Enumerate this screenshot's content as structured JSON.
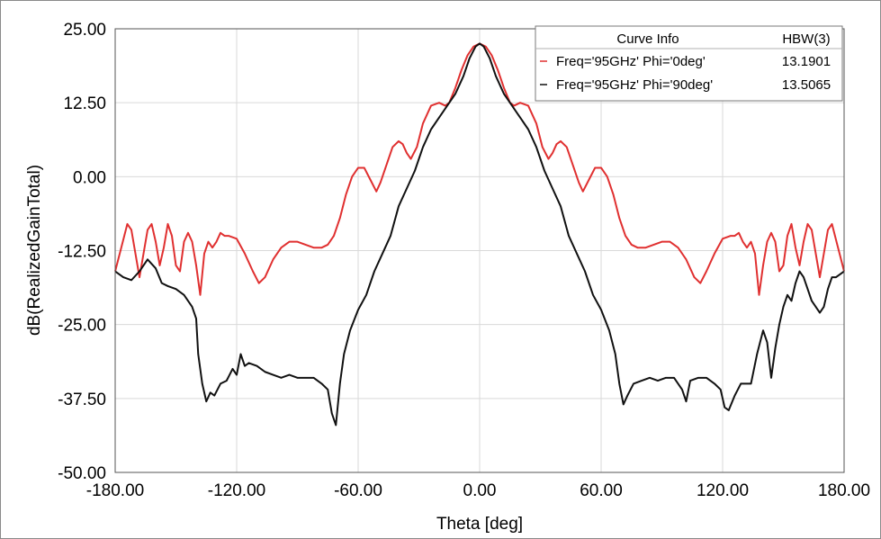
{
  "chart_data": {
    "type": "line",
    "title": "",
    "xlabel": "Theta [deg]",
    "ylabel": "dB(RealizedGainTotal)",
    "xlim": [
      -180,
      180
    ],
    "ylim": [
      -50,
      25
    ],
    "x_ticks": [
      -180,
      -120,
      -60,
      0,
      60,
      120,
      180
    ],
    "x_tick_labels": [
      "-180.00",
      "-120.00",
      "-60.00",
      "0.00",
      "60.00",
      "120.00",
      "180.00"
    ],
    "y_ticks": [
      25,
      12.5,
      0,
      -12.5,
      -25,
      -37.5,
      -50
    ],
    "y_tick_labels": [
      "25.00",
      "12.50",
      "0.00",
      "-12.50",
      "-25.00",
      "-37.50",
      "-50.00"
    ],
    "grid": true,
    "legend": {
      "placement": "top-right",
      "header_curve": "Curve Info",
      "header_value": "HBW(3)"
    },
    "series": [
      {
        "name": "Freq='95GHz' Phi='0deg'",
        "hbw": "13.1901",
        "color": "#e03030",
        "points": [
          [
            -180,
            -16
          ],
          [
            -177,
            -12
          ],
          [
            -174,
            -8
          ],
          [
            -172,
            -9
          ],
          [
            -170,
            -13
          ],
          [
            -168,
            -17
          ],
          [
            -166,
            -13
          ],
          [
            -164,
            -9
          ],
          [
            -162,
            -8
          ],
          [
            -160,
            -11
          ],
          [
            -158,
            -15
          ],
          [
            -156,
            -12
          ],
          [
            -154,
            -8
          ],
          [
            -152,
            -10
          ],
          [
            -150,
            -15
          ],
          [
            -148,
            -16
          ],
          [
            -146,
            -11
          ],
          [
            -144,
            -9.5
          ],
          [
            -142,
            -11
          ],
          [
            -140,
            -15
          ],
          [
            -138,
            -20
          ],
          [
            -136,
            -13
          ],
          [
            -134,
            -11
          ],
          [
            -132,
            -12
          ],
          [
            -130,
            -11
          ],
          [
            -128,
            -9.5
          ],
          [
            -126,
            -10
          ],
          [
            -124,
            -10
          ],
          [
            -120,
            -10.5
          ],
          [
            -116,
            -13
          ],
          [
            -112,
            -16
          ],
          [
            -109,
            -18
          ],
          [
            -106,
            -17
          ],
          [
            -102,
            -14
          ],
          [
            -98,
            -12
          ],
          [
            -94,
            -11
          ],
          [
            -90,
            -11
          ],
          [
            -86,
            -11.5
          ],
          [
            -82,
            -12
          ],
          [
            -78,
            -12
          ],
          [
            -75,
            -11.5
          ],
          [
            -72,
            -10
          ],
          [
            -69,
            -7
          ],
          [
            -66,
            -3
          ],
          [
            -63,
            0
          ],
          [
            -60,
            1.5
          ],
          [
            -57,
            1.5
          ],
          [
            -54,
            -0.5
          ],
          [
            -51,
            -2.5
          ],
          [
            -49,
            -1
          ],
          [
            -46,
            2
          ],
          [
            -43,
            5
          ],
          [
            -40,
            6
          ],
          [
            -38,
            5.5
          ],
          [
            -36,
            4
          ],
          [
            -34,
            3
          ],
          [
            -31,
            5
          ],
          [
            -28,
            9
          ],
          [
            -24,
            12
          ],
          [
            -20,
            12.5
          ],
          [
            -17,
            12
          ],
          [
            -15,
            12.5
          ],
          [
            -12,
            15
          ],
          [
            -9,
            18
          ],
          [
            -6,
            20.5
          ],
          [
            -3,
            22
          ],
          [
            0,
            22.5
          ],
          [
            3,
            22
          ],
          [
            6,
            20.5
          ],
          [
            9,
            18
          ],
          [
            12,
            15
          ],
          [
            15,
            12.5
          ],
          [
            17,
            12
          ],
          [
            20,
            12.5
          ],
          [
            24,
            12
          ],
          [
            28,
            9
          ],
          [
            31,
            5
          ],
          [
            34,
            3
          ],
          [
            36,
            4
          ],
          [
            38,
            5.5
          ],
          [
            40,
            6
          ],
          [
            43,
            5
          ],
          [
            46,
            2
          ],
          [
            49,
            -1
          ],
          [
            51,
            -2.5
          ],
          [
            54,
            -0.5
          ],
          [
            57,
            1.5
          ],
          [
            60,
            1.5
          ],
          [
            63,
            0
          ],
          [
            66,
            -3
          ],
          [
            69,
            -7
          ],
          [
            72,
            -10
          ],
          [
            75,
            -11.5
          ],
          [
            78,
            -12
          ],
          [
            82,
            -12
          ],
          [
            86,
            -11.5
          ],
          [
            90,
            -11
          ],
          [
            94,
            -11
          ],
          [
            98,
            -12
          ],
          [
            102,
            -14
          ],
          [
            106,
            -17
          ],
          [
            109,
            -18
          ],
          [
            112,
            -16
          ],
          [
            116,
            -13
          ],
          [
            120,
            -10.5
          ],
          [
            124,
            -10
          ],
          [
            126,
            -10
          ],
          [
            128,
            -9.5
          ],
          [
            130,
            -11
          ],
          [
            132,
            -12
          ],
          [
            134,
            -11
          ],
          [
            136,
            -13
          ],
          [
            138,
            -20
          ],
          [
            140,
            -15
          ],
          [
            142,
            -11
          ],
          [
            144,
            -9.5
          ],
          [
            146,
            -11
          ],
          [
            148,
            -16
          ],
          [
            150,
            -15
          ],
          [
            152,
            -10
          ],
          [
            154,
            -8
          ],
          [
            156,
            -12
          ],
          [
            158,
            -15
          ],
          [
            160,
            -11
          ],
          [
            162,
            -8
          ],
          [
            164,
            -9
          ],
          [
            166,
            -13
          ],
          [
            168,
            -17
          ],
          [
            170,
            -13
          ],
          [
            172,
            -9
          ],
          [
            174,
            -8
          ],
          [
            177,
            -12
          ],
          [
            180,
            -16
          ]
        ]
      },
      {
        "name": "Freq='95GHz' Phi='90deg'",
        "hbw": "13.5065",
        "color": "#111111",
        "points": [
          [
            -180,
            -16
          ],
          [
            -176,
            -17
          ],
          [
            -172,
            -17.5
          ],
          [
            -168,
            -16
          ],
          [
            -164,
            -14
          ],
          [
            -160,
            -15.5
          ],
          [
            -157,
            -18
          ],
          [
            -154,
            -18.5
          ],
          [
            -150,
            -19
          ],
          [
            -146,
            -20
          ],
          [
            -142,
            -22
          ],
          [
            -140,
            -24
          ],
          [
            -139,
            -30
          ],
          [
            -137,
            -35
          ],
          [
            -135,
            -38
          ],
          [
            -133,
            -36.5
          ],
          [
            -131,
            -37
          ],
          [
            -128,
            -35
          ],
          [
            -125,
            -34.5
          ],
          [
            -122,
            -32.5
          ],
          [
            -120,
            -33.5
          ],
          [
            -118,
            -30
          ],
          [
            -116,
            -32
          ],
          [
            -114,
            -31.5
          ],
          [
            -110,
            -32
          ],
          [
            -106,
            -33
          ],
          [
            -102,
            -33.5
          ],
          [
            -98,
            -34
          ],
          [
            -94,
            -33.5
          ],
          [
            -90,
            -34
          ],
          [
            -86,
            -34
          ],
          [
            -82,
            -34
          ],
          [
            -78,
            -35
          ],
          [
            -75,
            -36
          ],
          [
            -73,
            -40
          ],
          [
            -71,
            -42
          ],
          [
            -69,
            -35
          ],
          [
            -67,
            -30
          ],
          [
            -64,
            -26
          ],
          [
            -60,
            -22.5
          ],
          [
            -56,
            -20
          ],
          [
            -52,
            -16
          ],
          [
            -48,
            -13
          ],
          [
            -44,
            -10
          ],
          [
            -40,
            -5
          ],
          [
            -36,
            -2
          ],
          [
            -32,
            1
          ],
          [
            -28,
            5
          ],
          [
            -24,
            8
          ],
          [
            -20,
            10
          ],
          [
            -16,
            12
          ],
          [
            -12,
            14
          ],
          [
            -8,
            17
          ],
          [
            -5,
            20
          ],
          [
            -2,
            22
          ],
          [
            0,
            22.5
          ],
          [
            2,
            22
          ],
          [
            5,
            20
          ],
          [
            8,
            17
          ],
          [
            12,
            14
          ],
          [
            16,
            12
          ],
          [
            20,
            10
          ],
          [
            24,
            8
          ],
          [
            28,
            5
          ],
          [
            32,
            1
          ],
          [
            36,
            -2
          ],
          [
            40,
            -5
          ],
          [
            44,
            -10
          ],
          [
            48,
            -13
          ],
          [
            52,
            -16
          ],
          [
            56,
            -20
          ],
          [
            60,
            -22.5
          ],
          [
            64,
            -26
          ],
          [
            67,
            -30
          ],
          [
            69,
            -35
          ],
          [
            71,
            -38.5
          ],
          [
            73,
            -37
          ],
          [
            76,
            -35
          ],
          [
            80,
            -34.5
          ],
          [
            84,
            -34
          ],
          [
            88,
            -34.5
          ],
          [
            92,
            -34
          ],
          [
            96,
            -34
          ],
          [
            100,
            -36
          ],
          [
            102,
            -38
          ],
          [
            104,
            -34.5
          ],
          [
            108,
            -34
          ],
          [
            112,
            -34
          ],
          [
            116,
            -35
          ],
          [
            119,
            -36
          ],
          [
            121,
            -39
          ],
          [
            123,
            -39.5
          ],
          [
            126,
            -37
          ],
          [
            129,
            -35
          ],
          [
            132,
            -35
          ],
          [
            134,
            -35
          ],
          [
            137,
            -30
          ],
          [
            140,
            -26
          ],
          [
            142,
            -28
          ],
          [
            144,
            -34
          ],
          [
            146,
            -29
          ],
          [
            148,
            -25
          ],
          [
            150,
            -22
          ],
          [
            152,
            -20
          ],
          [
            154,
            -21
          ],
          [
            156,
            -18
          ],
          [
            158,
            -16
          ],
          [
            160,
            -17
          ],
          [
            162,
            -19
          ],
          [
            164,
            -21
          ],
          [
            166,
            -22
          ],
          [
            168,
            -23
          ],
          [
            170,
            -22
          ],
          [
            172,
            -19
          ],
          [
            174,
            -17
          ],
          [
            176,
            -17
          ],
          [
            180,
            -16
          ]
        ]
      }
    ]
  }
}
